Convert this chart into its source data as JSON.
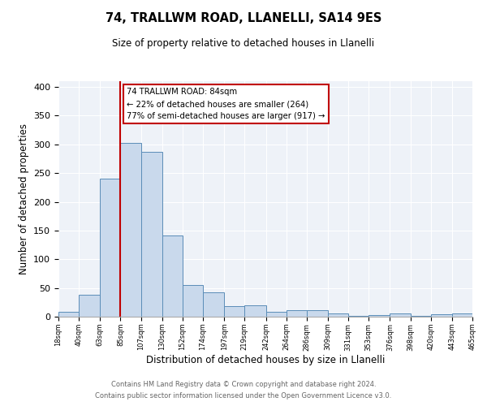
{
  "title": "74, TRALLWM ROAD, LLANELLI, SA14 9ES",
  "subtitle": "Size of property relative to detached houses in Llanelli",
  "xlabel": "Distribution of detached houses by size in Llanelli",
  "ylabel": "Number of detached properties",
  "bins": [
    18,
    40,
    63,
    85,
    107,
    130,
    152,
    174,
    197,
    219,
    242,
    264,
    286,
    309,
    331,
    353,
    376,
    398,
    420,
    443,
    465
  ],
  "values": [
    8,
    38,
    240,
    303,
    287,
    141,
    55,
    43,
    19,
    20,
    8,
    11,
    11,
    5,
    2,
    3,
    5,
    1,
    4,
    5
  ],
  "bar_color": "#c9d9ec",
  "bar_edge_color": "#5b8db8",
  "property_line_x": 85,
  "annotation_title": "74 TRALLWM ROAD: 84sqm",
  "annotation_line1": "← 22% of detached houses are smaller (264)",
  "annotation_line2": "77% of semi-detached houses are larger (917) →",
  "annotation_box_color": "#ffffff",
  "annotation_box_edge_color": "#c00000",
  "vline_color": "#c00000",
  "ylim": [
    0,
    410
  ],
  "xlim": [
    18,
    465
  ],
  "tick_labels": [
    "18sqm",
    "40sqm",
    "63sqm",
    "85sqm",
    "107sqm",
    "130sqm",
    "152sqm",
    "174sqm",
    "197sqm",
    "219sqm",
    "242sqm",
    "264sqm",
    "286sqm",
    "309sqm",
    "331sqm",
    "353sqm",
    "376sqm",
    "398sqm",
    "420sqm",
    "443sqm",
    "465sqm"
  ],
  "footnote1": "Contains HM Land Registry data © Crown copyright and database right 2024.",
  "footnote2": "Contains public sector information licensed under the Open Government Licence v3.0.",
  "background_color": "#eef2f8"
}
